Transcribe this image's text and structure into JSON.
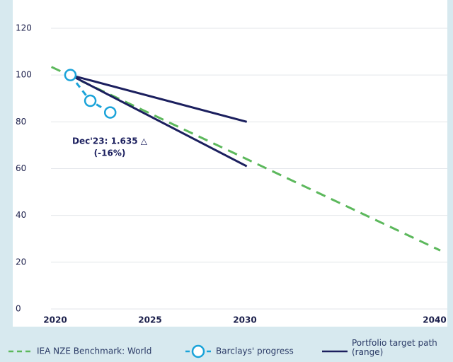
{
  "chart_data": {
    "type": "line",
    "annotation": [
      "Dec'23: 1.635 △",
      "(-16%)"
    ],
    "xlim": [
      2020,
      2040
    ],
    "xticks": [
      2020,
      2025,
      2030,
      2040
    ],
    "ylim": [
      0,
      120
    ],
    "yticks": [
      0,
      20,
      40,
      60,
      80,
      100,
      120
    ],
    "grid": true,
    "series": [
      {
        "name": "IEA NZE Benchmark: World",
        "color": "#5cb85c",
        "style": "dashed",
        "x": [
          2019.8,
          2040.3
        ],
        "values": [
          103.5,
          25
        ]
      },
      {
        "name": "Barclays' progress",
        "color": "#1aa3d9",
        "style": "markers",
        "x": [
          2020.8,
          2021.85,
          2022.9
        ],
        "values": [
          100,
          89,
          84
        ]
      },
      {
        "name": "Portfolio target path (range)",
        "color": "#1b1f5e",
        "style": "range",
        "x": [
          2020.8,
          2030.1
        ],
        "values": [
          100,
          80
        ],
        "values_low": [
          100,
          61
        ]
      }
    ]
  }
}
